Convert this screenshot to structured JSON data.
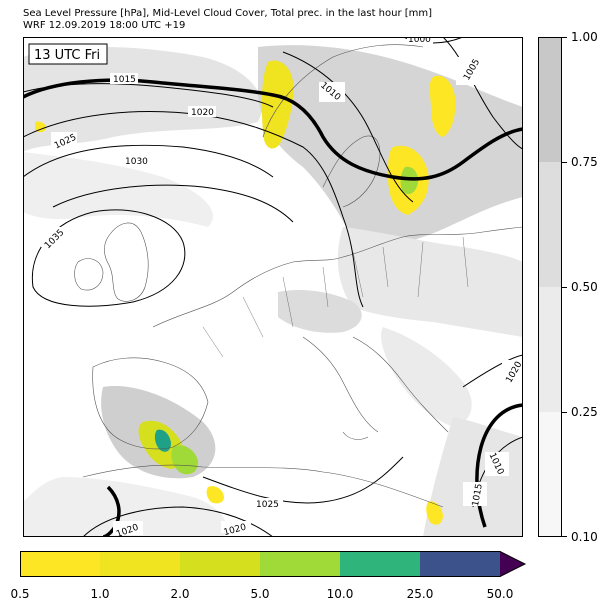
{
  "header": {
    "title_line1": "Sea Level Pressure [hPa], Mid-Level Cloud Cover, Total prec. in the last hour [mm]",
    "title_line2": "WRF 12.09.2019 18:00 UTC +19"
  },
  "map": {
    "time_label": "13 UTC Fri",
    "isobar_labels": [
      "1000",
      "1005",
      "1010",
      "1015",
      "1020",
      "1025",
      "1030",
      "1035"
    ],
    "isobar_label_instances": [
      "1000",
      "1005",
      "1010",
      "1015",
      "1020",
      "1025",
      "1030",
      "1035",
      "1020",
      "1010",
      "1015",
      "1025",
      "1020",
      "1020"
    ],
    "cloud_cover_colors": [
      "#f7f7f7",
      "#ebebeb",
      "#dddddd",
      "#c8c8c8"
    ],
    "precip_colors": [
      "#fde725",
      "#f0e31f",
      "#d6df1e",
      "#a0da39",
      "#4ac16d",
      "#1fa187",
      "#365c8d",
      "#440154"
    ],
    "land_color": "#ffffff",
    "sea_color": "#ffffff"
  },
  "cloud_colorbar": {
    "ticks": [
      "1.00",
      "0.75",
      "0.50",
      "0.25",
      "0.10"
    ],
    "levels": [
      0.1,
      0.25,
      0.5,
      0.75,
      1.0
    ],
    "colors": [
      "#f7f7f7",
      "#ebebeb",
      "#dddddd",
      "#c8c8c8"
    ]
  },
  "precip_colorbar": {
    "ticks": [
      "0.5",
      "1.0",
      "2.0",
      "5.0",
      "10.0",
      "25.0",
      "50.0"
    ],
    "colors": [
      "#fde725",
      "#f0e31f",
      "#d6df1e",
      "#a0da39",
      "#2fb47c",
      "#3b528b",
      "#440154"
    ]
  }
}
